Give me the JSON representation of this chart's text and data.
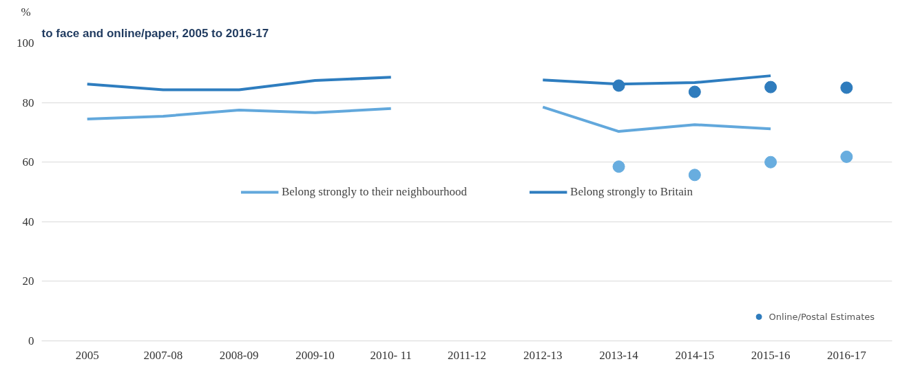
{
  "chart_data": {
    "type": "line",
    "title": "to face and online/paper, 2005 to 2016-17",
    "ylabel": "%",
    "categories": [
      "2005",
      "2007-08",
      "2008-09",
      "2009-10",
      "2010- 11",
      "2011-12",
      "2012-13",
      "2013-14",
      "2014-15",
      "2015-16",
      "2016-17"
    ],
    "series": [
      {
        "name": "Belong strongly to their neighbourhood",
        "color": "#62a8dc",
        "values": [
          74.5,
          75.4,
          77.5,
          76.6,
          78,
          null,
          78.5,
          70.3,
          72.6,
          71.2,
          null
        ]
      },
      {
        "name": "Belong strongly to Britain",
        "color": "#2e7dbf",
        "values": [
          86.2,
          84.3,
          84.3,
          87.4,
          88.5,
          null,
          87.6,
          86.2,
          86.7,
          89,
          null
        ]
      },
      {
        "type": "scatter",
        "marker": "circle",
        "color": "#68addf",
        "values": [
          null,
          null,
          null,
          null,
          null,
          null,
          null,
          58.5,
          55.7,
          60,
          61.8
        ]
      },
      {
        "type": "scatter",
        "marker": "circle",
        "name": "Online/Postal Estimates",
        "color": "#2f7cbd",
        "values": [
          null,
          null,
          null,
          null,
          null,
          null,
          null,
          85.7,
          83.6,
          85.2,
          85
        ]
      }
    ],
    "ylim": [
      0,
      100
    ],
    "yticks": [
      0,
      20,
      40,
      60,
      80,
      100
    ],
    "grid": "y",
    "legend": "center"
  }
}
